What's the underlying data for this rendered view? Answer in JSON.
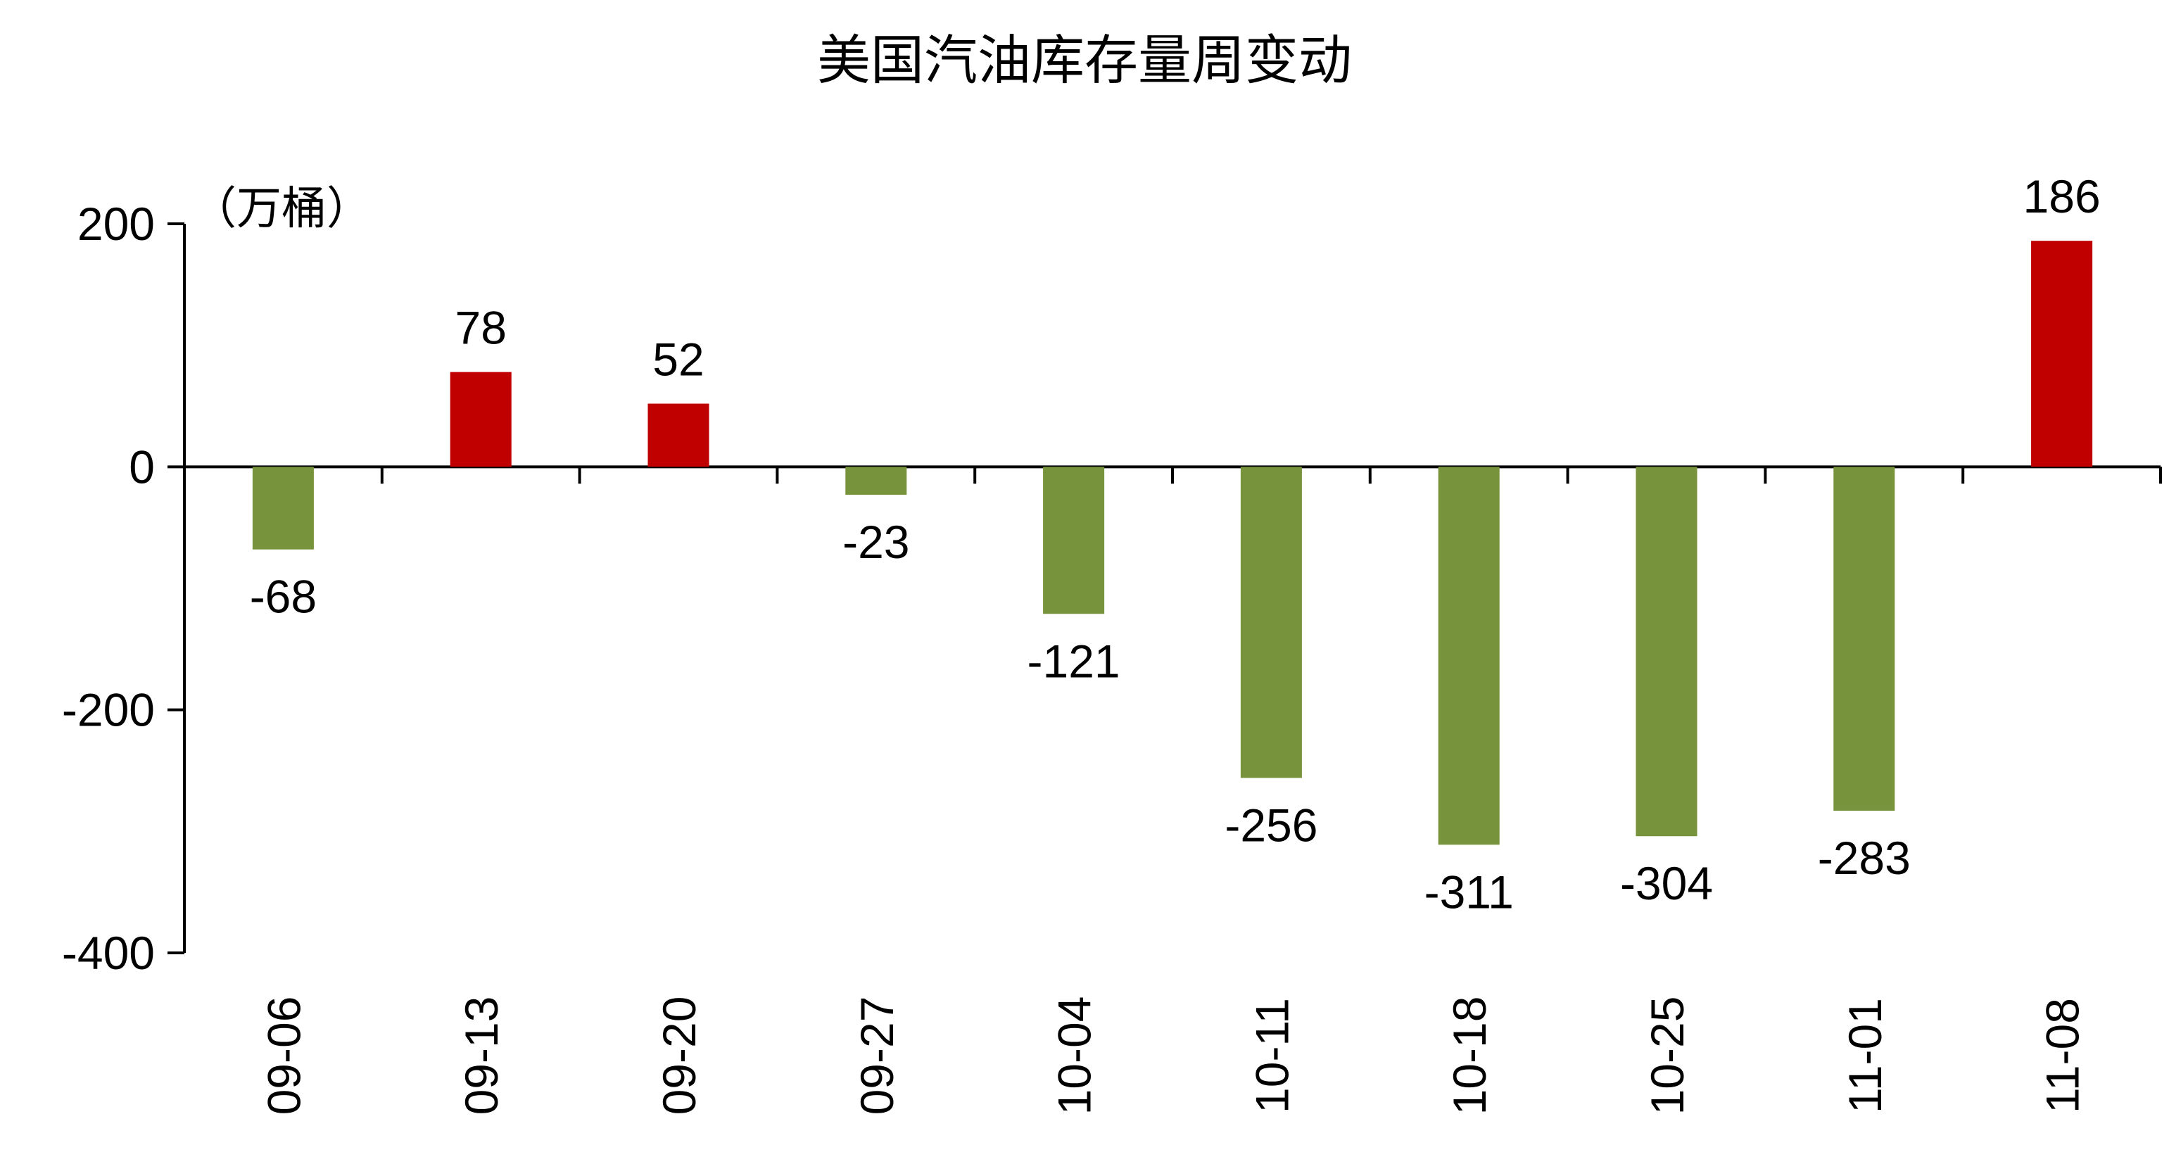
{
  "chart_data": {
    "type": "bar",
    "title": "美国汽油库存量周变动",
    "unit_label": "（万桶）",
    "categories": [
      "09-06",
      "09-13",
      "09-20",
      "09-27",
      "10-04",
      "10-11",
      "10-18",
      "10-25",
      "11-01",
      "11-08"
    ],
    "values": [
      -68,
      78,
      52,
      -23,
      -121,
      -256,
      -311,
      -304,
      -283,
      186
    ],
    "data_labels": [
      "-68",
      "78",
      "52",
      "-23",
      "-121",
      "-256",
      "-311",
      "-304",
      "-283",
      "186"
    ],
    "ylim": [
      -400,
      200
    ],
    "yticks": [
      200,
      0,
      -200,
      -400
    ],
    "ytick_labels": [
      "200",
      "0",
      "-200",
      "-400"
    ],
    "grid": false,
    "colors": {
      "positive": "#C00000",
      "negative": "#77933C"
    }
  }
}
